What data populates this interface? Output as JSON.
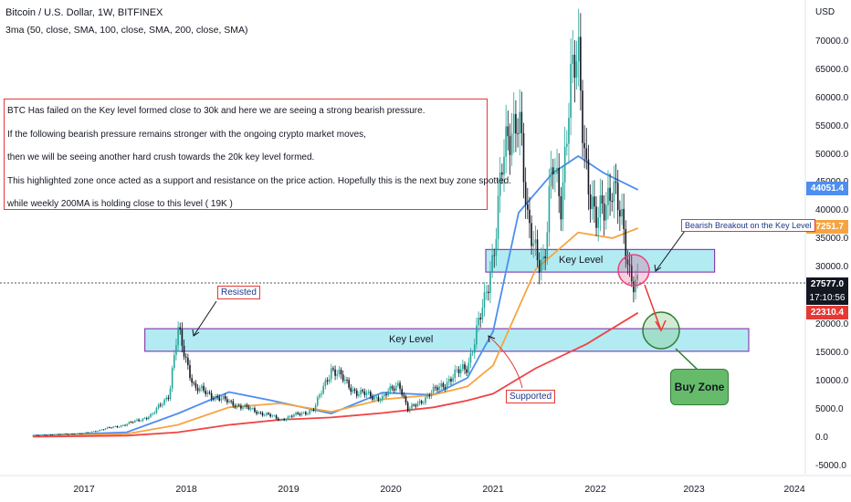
{
  "header": {
    "title": "Bitcoin / U.S. Dollar, 1W, BITFINEX",
    "indicator": "3ma (50, close, SMA, 100, close, SMA, 200, close, SMA)"
  },
  "price_axis": {
    "unit": "USD",
    "ticks": [
      "70000.0",
      "65000.0",
      "60000.0",
      "55000.0",
      "50000.0",
      "45000.0",
      "40000.0",
      "35000.0",
      "30000.0",
      "20000.0",
      "15000.0",
      "10000.0",
      "5000.0",
      "0.0",
      "-5000.0"
    ]
  },
  "time_axis": {
    "ticks": [
      "2017",
      "2018",
      "2019",
      "2020",
      "2021",
      "2022",
      "2023",
      "2024"
    ]
  },
  "price_tags": {
    "ma50": "44051.4",
    "ma100": "37251.7",
    "last_price": "27577.0",
    "countdown": "17:10:56",
    "ma200": "22310.4"
  },
  "colors": {
    "ma50": "#4d8ef0",
    "ma100": "#f7a440",
    "ma200": "#ef4444",
    "up": "#26a69a",
    "down": "#131722",
    "zone": "#b2ebf2"
  },
  "annotation": {
    "lines": [
      "BTC Has failed on the Key level formed close to 30k and here we are seeing a strong bearish pressure.",
      "If the following bearish pressure remains stronger with the ongoing crypto market moves,",
      "then we will be seeing another hard crush towards the 20k key level formed.",
      "This highlighted zone once acted as a support and resistance on the price action. Hopefully this is the next buy zone spotted.",
      "while weekly 200MA is holding close to this level ( 19K )"
    ]
  },
  "labels": {
    "key_level_upper": "Key Level",
    "key_level_lower": "Key Level",
    "resisted": "Resisted",
    "supported": "Supported",
    "bearish_breakout": "Bearish Breakout on the Key Level",
    "buy_zone": "Buy Zone"
  },
  "chart_data": {
    "type": "candlestick",
    "title": "Bitcoin / U.S. Dollar, 1W, BITFINEX",
    "y_unit": "USD",
    "ylim": [
      -5000,
      72000
    ],
    "xlim": [
      "2016-07",
      "2024-01"
    ],
    "grid": false,
    "price_path": [
      [
        "2016-07",
        650
      ],
      [
        "2017-01",
        1000
      ],
      [
        "2017-06",
        2600
      ],
      [
        "2017-09",
        4200
      ],
      [
        "2017-11",
        8000
      ],
      [
        "2017-12",
        19000
      ],
      [
        "2018-02",
        9000
      ],
      [
        "2018-06",
        6500
      ],
      [
        "2018-11",
        4000
      ],
      [
        "2018-12",
        3400
      ],
      [
        "2019-04",
        5200
      ],
      [
        "2019-06",
        12500
      ],
      [
        "2019-09",
        8200
      ],
      [
        "2019-12",
        7200
      ],
      [
        "2020-02",
        10000
      ],
      [
        "2020-03",
        5000
      ],
      [
        "2020-07",
        9500
      ],
      [
        "2020-10",
        13000
      ],
      [
        "2020-12",
        24000
      ],
      [
        "2021-01",
        33000
      ],
      [
        "2021-02",
        47000
      ],
      [
        "2021-04",
        60000
      ],
      [
        "2021-05",
        37000
      ],
      [
        "2021-07",
        31000
      ],
      [
        "2021-08",
        48000
      ],
      [
        "2021-09",
        43000
      ],
      [
        "2021-10",
        61000
      ],
      [
        "2021-11",
        67000
      ],
      [
        "2021-12",
        48000
      ],
      [
        "2022-01",
        37000
      ],
      [
        "2022-03",
        46000
      ],
      [
        "2022-05",
        30000
      ],
      [
        "2022-06",
        27577
      ]
    ],
    "series": [
      {
        "name": "SMA 50",
        "color": "#4d8ef0",
        "last": 44051.4,
        "values": [
          [
            "2016-07",
            600
          ],
          [
            "2017-06",
            1200
          ],
          [
            "2017-12",
            4500
          ],
          [
            "2018-06",
            8300
          ],
          [
            "2018-11",
            6800
          ],
          [
            "2019-06",
            4500
          ],
          [
            "2019-12",
            8200
          ],
          [
            "2020-06",
            7800
          ],
          [
            "2020-10",
            10800
          ],
          [
            "2021-01",
            19000
          ],
          [
            "2021-04",
            40000
          ],
          [
            "2021-08",
            47000
          ],
          [
            "2021-11",
            50000
          ],
          [
            "2022-02",
            47000
          ],
          [
            "2022-06",
            44051
          ]
        ]
      },
      {
        "name": "SMA 100",
        "color": "#f7a440",
        "last": 37251.7,
        "values": [
          [
            "2016-07",
            500
          ],
          [
            "2017-06",
            900
          ],
          [
            "2017-12",
            2500
          ],
          [
            "2018-06",
            5600
          ],
          [
            "2018-12",
            6300
          ],
          [
            "2019-06",
            4800
          ],
          [
            "2019-12",
            7000
          ],
          [
            "2020-06",
            7800
          ],
          [
            "2020-10",
            9300
          ],
          [
            "2021-01",
            13000
          ],
          [
            "2021-06",
            30000
          ],
          [
            "2021-11",
            36500
          ],
          [
            "2022-03",
            35500
          ],
          [
            "2022-06",
            37252
          ]
        ]
      },
      {
        "name": "SMA 200",
        "color": "#ef4444",
        "last": 22310.4,
        "values": [
          [
            "2016-07",
            400
          ],
          [
            "2017-06",
            600
          ],
          [
            "2017-12",
            1200
          ],
          [
            "2018-06",
            2500
          ],
          [
            "2018-12",
            3400
          ],
          [
            "2019-06",
            3800
          ],
          [
            "2019-12",
            4600
          ],
          [
            "2020-06",
            5600
          ],
          [
            "2020-10",
            6800
          ],
          [
            "2021-01",
            8000
          ],
          [
            "2021-06",
            12500
          ],
          [
            "2021-12",
            16800
          ],
          [
            "2022-06",
            22310
          ]
        ]
      }
    ],
    "zones": [
      {
        "label": "Key Level",
        "y": [
          29500,
          33500
        ],
        "x": [
          "2021-01",
          "2023-03"
        ]
      },
      {
        "label": "Key Level",
        "y": [
          15500,
          19500
        ],
        "x": [
          "2017-09",
          "2023-07"
        ]
      }
    ],
    "last_price": 27577.0
  }
}
